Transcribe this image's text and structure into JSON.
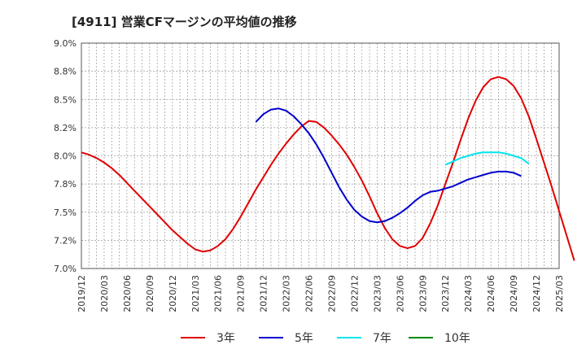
{
  "title": "[4911]  営業CFマージンの平均値の推移",
  "chart_data": {
    "type": "line",
    "ylim": [
      7.0,
      9.0
    ],
    "y_ticks": [
      "7.0%",
      "7.2%",
      "7.5%",
      "7.8%",
      "8.0%",
      "8.2%",
      "8.5%",
      "8.8%",
      "9.0%"
    ],
    "x_ticks": [
      "2019/12",
      "2020/03",
      "2020/06",
      "2020/09",
      "2020/12",
      "2021/03",
      "2021/06",
      "2021/09",
      "2021/12",
      "2022/03",
      "2022/06",
      "2022/09",
      "2022/12",
      "2023/03",
      "2023/06",
      "2023/09",
      "2023/12",
      "2024/03",
      "2024/06",
      "2024/09",
      "2024/12",
      "2025/03"
    ],
    "grid": true,
    "legend_position": "bottom",
    "series": [
      {
        "name": "3年",
        "color": "#e00000",
        "start_index": 0,
        "values": [
          8.03,
          8.01,
          7.98,
          7.94,
          7.89,
          7.83,
          7.76,
          7.69,
          7.62,
          7.55,
          7.48,
          7.41,
          7.34,
          7.28,
          7.22,
          7.17,
          7.15,
          7.16,
          7.2,
          7.26,
          7.35,
          7.46,
          7.58,
          7.7,
          7.81,
          7.92,
          8.02,
          8.11,
          8.19,
          8.26,
          8.31,
          8.3,
          8.25,
          8.18,
          8.1,
          8.01,
          7.9,
          7.78,
          7.64,
          7.49,
          7.36,
          7.26,
          7.2,
          7.18,
          7.2,
          7.27,
          7.4,
          7.56,
          7.75,
          7.94,
          8.14,
          8.33,
          8.49,
          8.61,
          8.68,
          8.7,
          8.68,
          8.62,
          8.51,
          8.35,
          8.15,
          7.94,
          7.73,
          7.51,
          7.29,
          7.07
        ]
      },
      {
        "name": "5年",
        "color": "#0000cc",
        "start_index": 23,
        "values": [
          8.3,
          8.37,
          8.41,
          8.42,
          8.4,
          8.35,
          8.28,
          8.2,
          8.1,
          7.98,
          7.85,
          7.72,
          7.61,
          7.52,
          7.46,
          7.42,
          7.41,
          7.42,
          7.45,
          7.49,
          7.54,
          7.6,
          7.65,
          7.68,
          7.69,
          7.71,
          7.73,
          7.76,
          7.79,
          7.81,
          7.83,
          7.85,
          7.86,
          7.86,
          7.85,
          7.82
        ]
      },
      {
        "name": "7年",
        "color": "#00e5ee",
        "start_index": 48,
        "values": [
          7.92,
          7.95,
          7.98,
          8.0,
          8.02,
          8.03,
          8.03,
          8.03,
          8.02,
          8.0,
          7.98,
          7.93
        ]
      },
      {
        "name": "10年",
        "color": "#008800",
        "start_index": 0,
        "values": []
      }
    ]
  }
}
